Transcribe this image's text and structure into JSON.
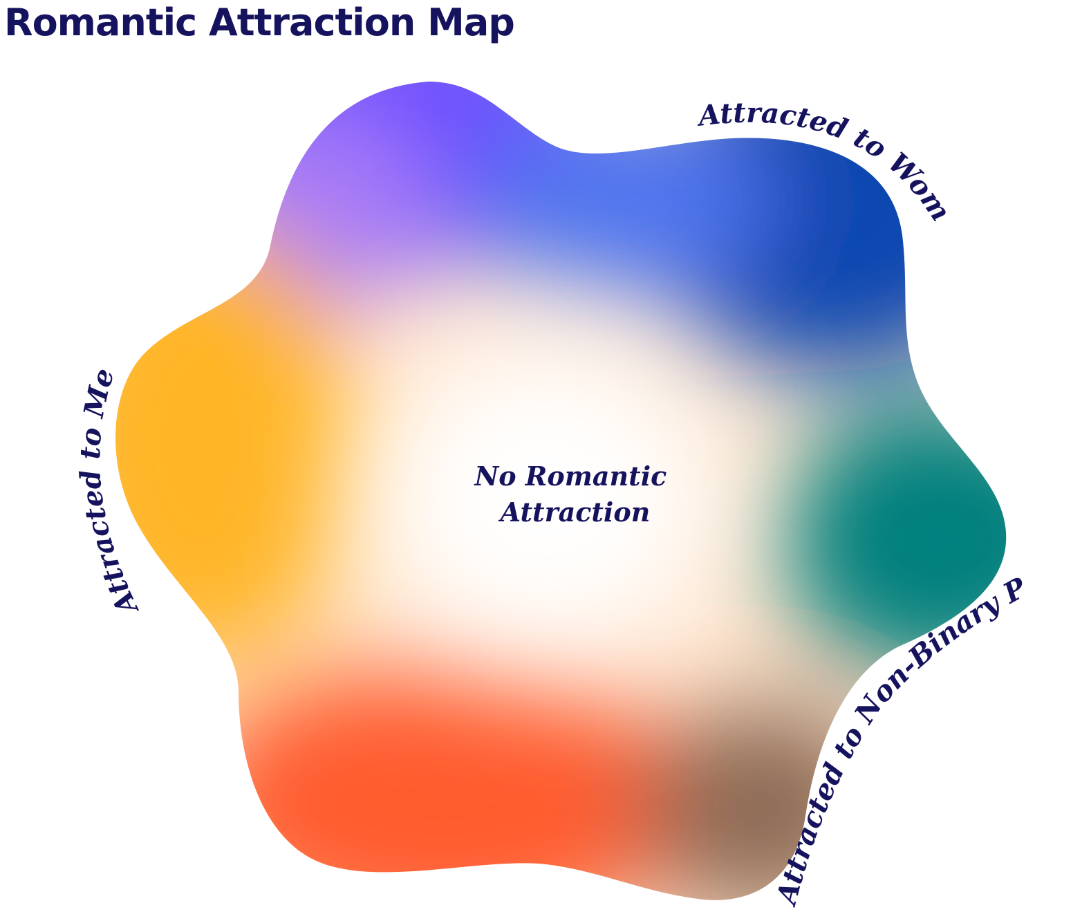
{
  "title": "Romantic Attraction Map",
  "labels": {
    "center": [
      "No Romantic",
      "Attraction"
    ],
    "women": "Attracted to Women",
    "men": "Attracted to Men",
    "non_binary": "Attracted to Non-Binary People"
  },
  "colors": {
    "ink": "#16135e",
    "purple": "#6a4cff",
    "blue": "#0a47b0",
    "teal": "#00807e",
    "orange": "#ff5c2e",
    "yellow": "#ffb526",
    "center": "#ffffff"
  }
}
